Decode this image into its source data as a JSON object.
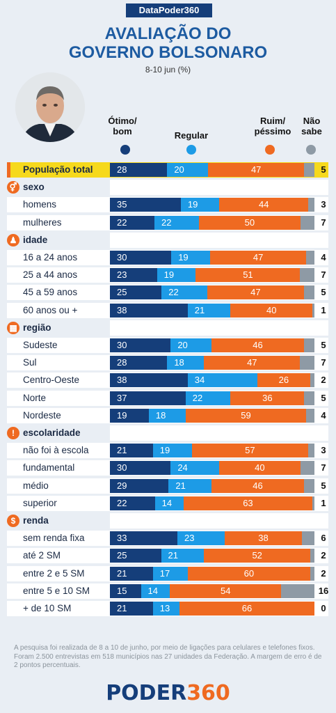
{
  "header": {
    "badge": "DataPoder360",
    "title_line1": "AVALIAÇÃO DO",
    "title_line2": "GOVERNO BOLSONARO",
    "subtitle": "8-10 jun (%)"
  },
  "legend": {
    "otimo_bom": "Ótimo/ bom",
    "regular": "Regular",
    "ruim_pessimo": "Ruim/ péssimo",
    "nao_sabe": "Não sabe"
  },
  "colors": {
    "otimo_bom": "#153e7a",
    "regular": "#1d9be6",
    "ruim_pessimo": "#ef6a21",
    "nao_sabe": "#8e9aa5",
    "highlight": "#f6d91c"
  },
  "chart_data": {
    "type": "bar",
    "stacked": true,
    "orientation": "horizontal",
    "series_names": [
      "Ótimo/ bom",
      "Regular",
      "Ruim/ péssimo",
      "Não sabe"
    ],
    "rows": [
      {
        "kind": "total",
        "label": "População total",
        "values": [
          28,
          20,
          47,
          5
        ]
      },
      {
        "kind": "category",
        "label": "sexo",
        "icon": "gender-icon"
      },
      {
        "kind": "row",
        "label": "homens",
        "values": [
          35,
          19,
          44,
          3
        ]
      },
      {
        "kind": "row",
        "label": "mulheres",
        "values": [
          22,
          22,
          50,
          7
        ]
      },
      {
        "kind": "category",
        "label": "idade",
        "icon": "person-icon"
      },
      {
        "kind": "row",
        "label": "16 a 24 anos",
        "values": [
          30,
          19,
          47,
          4
        ]
      },
      {
        "kind": "row",
        "label": "25 a 44 anos",
        "values": [
          23,
          19,
          51,
          7
        ]
      },
      {
        "kind": "row",
        "label": "45 a 59 anos",
        "values": [
          25,
          22,
          47,
          5
        ]
      },
      {
        "kind": "row",
        "label": "60 anos ou +",
        "values": [
          38,
          21,
          40,
          1
        ]
      },
      {
        "kind": "category",
        "label": "região",
        "icon": "map-icon"
      },
      {
        "kind": "row",
        "label": "Sudeste",
        "values": [
          30,
          20,
          46,
          5
        ]
      },
      {
        "kind": "row",
        "label": "Sul",
        "values": [
          28,
          18,
          47,
          7
        ]
      },
      {
        "kind": "row",
        "label": "Centro-Oeste",
        "values": [
          38,
          34,
          26,
          2
        ]
      },
      {
        "kind": "row",
        "label": "Norte",
        "values": [
          37,
          22,
          36,
          5
        ]
      },
      {
        "kind": "row",
        "label": "Nordeste",
        "values": [
          19,
          18,
          59,
          4
        ]
      },
      {
        "kind": "category",
        "label": "escolaridade",
        "icon": "exclamation-icon"
      },
      {
        "kind": "row",
        "label": "não foi à escola",
        "values": [
          21,
          19,
          57,
          3
        ]
      },
      {
        "kind": "row",
        "label": "fundamental",
        "values": [
          30,
          24,
          40,
          7
        ]
      },
      {
        "kind": "row",
        "label": "médio",
        "values": [
          29,
          21,
          46,
          5
        ]
      },
      {
        "kind": "row",
        "label": "superior",
        "values": [
          22,
          14,
          63,
          1
        ]
      },
      {
        "kind": "category",
        "label": "renda",
        "icon": "dollar-icon"
      },
      {
        "kind": "row",
        "label": "sem renda fixa",
        "values": [
          33,
          23,
          38,
          6
        ]
      },
      {
        "kind": "row",
        "label": "até 2 SM",
        "values": [
          25,
          21,
          52,
          2
        ]
      },
      {
        "kind": "row",
        "label": "entre 2 e 5 SM",
        "values": [
          21,
          17,
          60,
          2
        ]
      },
      {
        "kind": "row",
        "label": "entre 5 e 10 SM",
        "values": [
          15,
          14,
          54,
          16
        ]
      },
      {
        "kind": "row",
        "label": "+ de 10 SM",
        "values": [
          21,
          13,
          66,
          0
        ]
      }
    ]
  },
  "footer": {
    "note": "A pesquisa foi realizada de 8 a 10 de junho, por meio de ligações para celulares e telefones fixos. Foram 2.500 entrevistas em 518 municípios nas 27 unidades da Federação. A margem de erro é de 2 pontos percentuais.",
    "logo_part1": "PODER",
    "logo_part2": "360"
  }
}
